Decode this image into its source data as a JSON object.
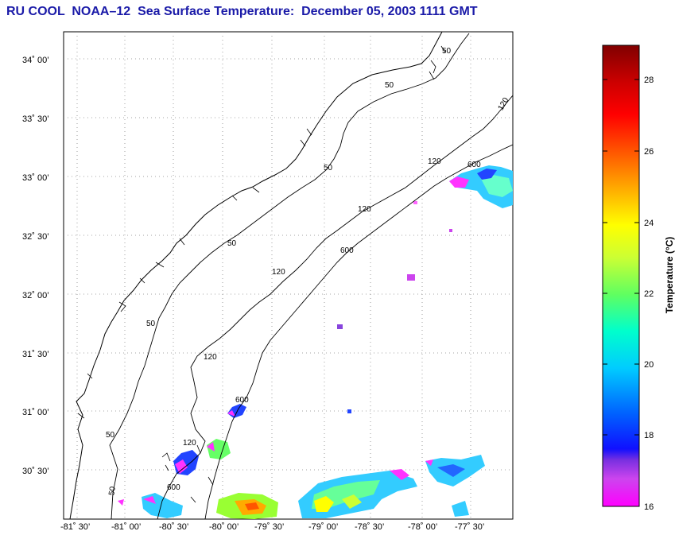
{
  "title": "RU COOL  NOAA–12  Sea Surface Temperature:  December 05, 2003 1111 GMT",
  "map": {
    "lat_labels": [
      "34˚ 00’",
      "33˚ 30’",
      "33˚ 00’",
      "32˚ 30’",
      "32˚ 00’",
      "31˚ 30’",
      "31˚ 00’",
      "30˚ 30’"
    ],
    "lon_labels": [
      "-81˚ 30’",
      "-81˚ 00’",
      "-80˚ 30’",
      "-80˚ 00’",
      "-79˚ 30’",
      "-79˚ 00’",
      "-78˚ 30’",
      "-78˚ 00’",
      "-77˚ 30’"
    ],
    "contour_labels": [
      "50",
      "50",
      "50",
      "50",
      "50",
      "50",
      "50",
      "120",
      "120",
      "120",
      "120",
      "120",
      "120",
      "600",
      "600",
      "600",
      "600"
    ],
    "grid": true
  },
  "colorbar": {
    "label": "Temperature (°C)",
    "ticks": [
      "28",
      "26",
      "24",
      "22",
      "20",
      "18",
      "16"
    ],
    "range": [
      16,
      29
    ]
  }
}
